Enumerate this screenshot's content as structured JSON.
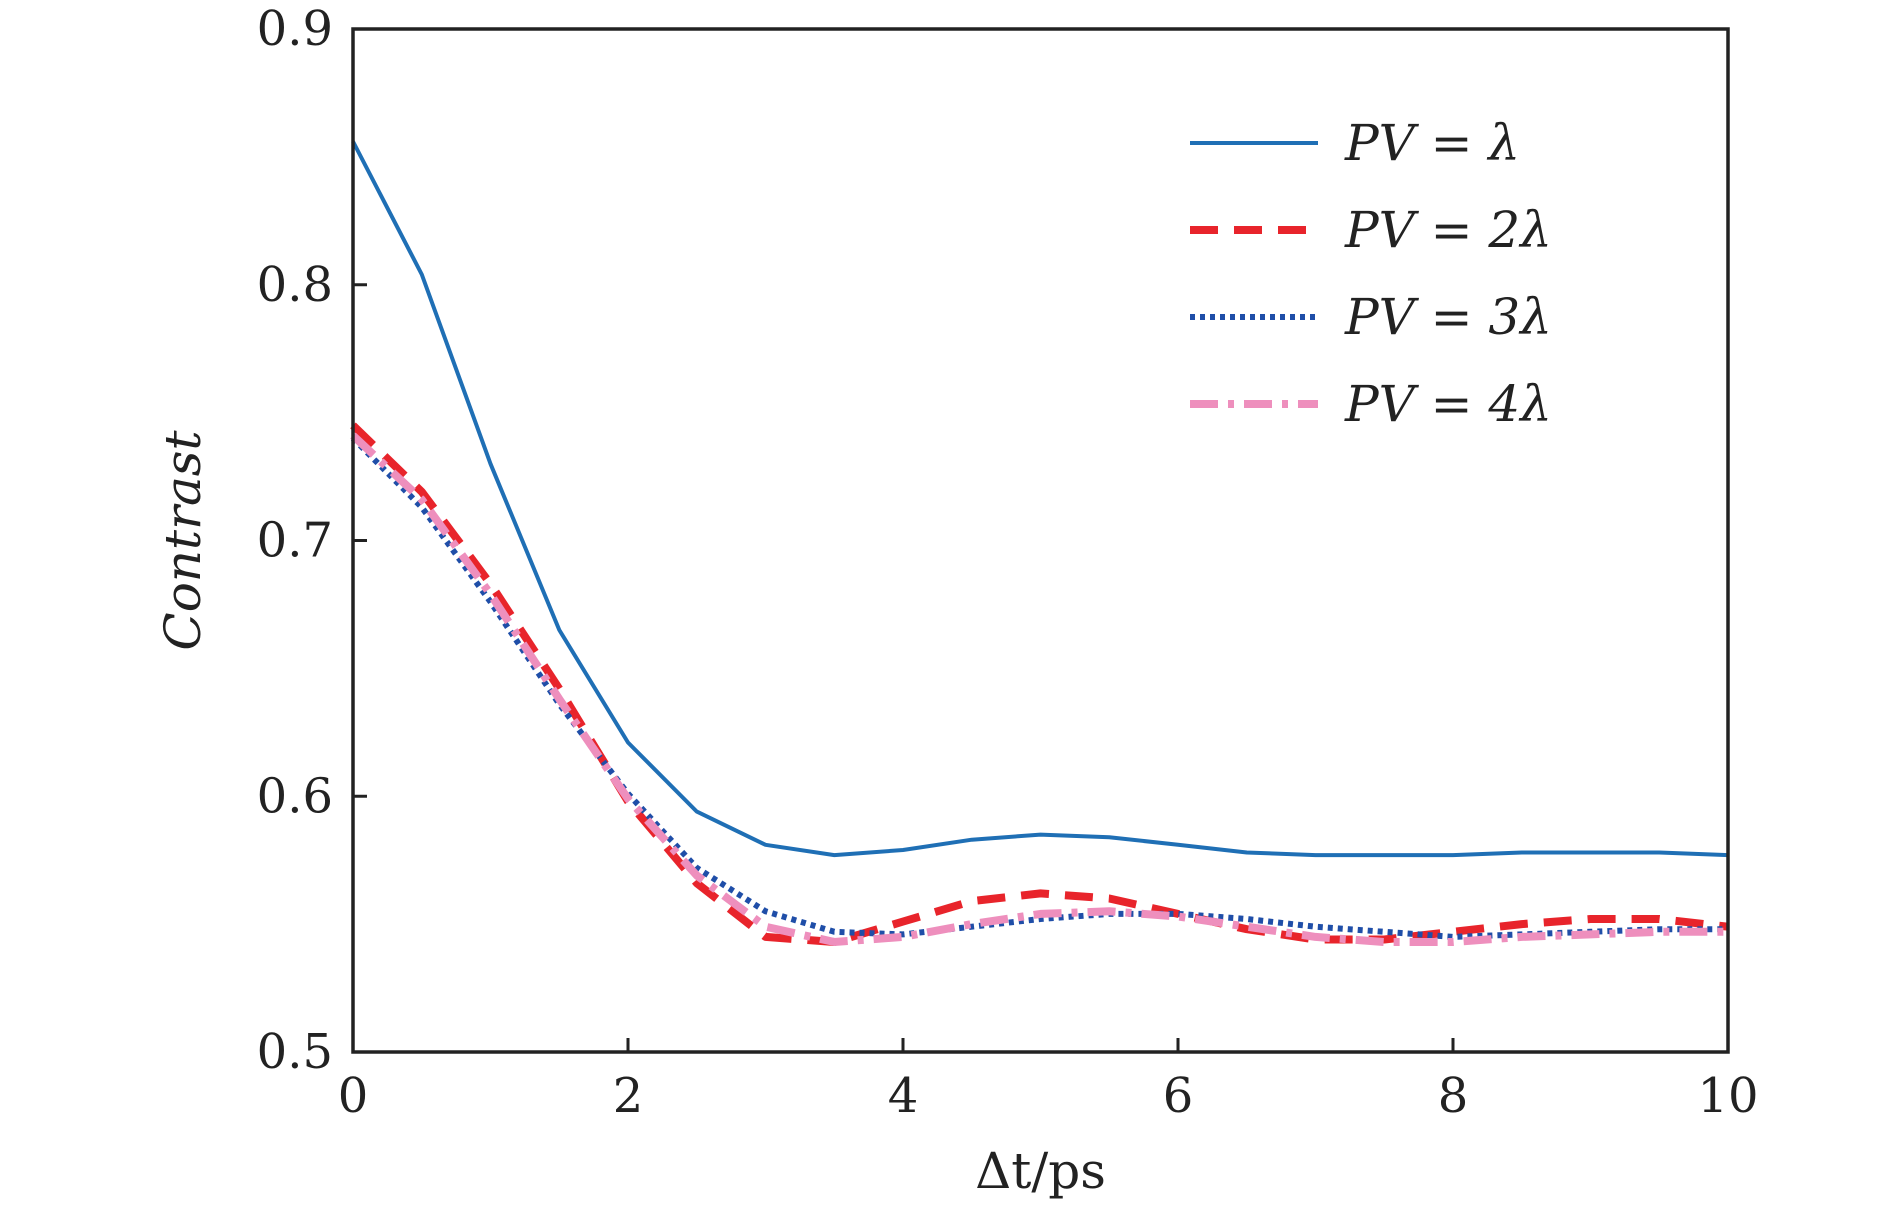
{
  "chart_data": {
    "type": "line",
    "title": "",
    "xlabel": "Δt/ps",
    "ylabel": "Contrast",
    "xlim": [
      0,
      10
    ],
    "ylim": [
      0.5,
      0.9
    ],
    "xticks": [
      0,
      2,
      4,
      6,
      8,
      10
    ],
    "yticks": [
      0.5,
      0.6,
      0.7,
      0.8,
      0.9
    ],
    "xtick_labels": [
      "0",
      "2",
      "4",
      "6",
      "8",
      "10"
    ],
    "ytick_labels": [
      "0.5",
      "0.6",
      "0.7",
      "0.8",
      "0.9"
    ],
    "grid": false,
    "legend_position": "top-right",
    "x": [
      0,
      0.5,
      1,
      1.5,
      2,
      2.5,
      3,
      3.5,
      4,
      4.5,
      5,
      5.5,
      6,
      6.5,
      7,
      7.5,
      8,
      8.5,
      9,
      9.5,
      10
    ],
    "series": [
      {
        "name": "PV = λ",
        "color": "#1f6fb5",
        "style": "solid",
        "values": [
          0.856,
          0.804,
          0.73,
          0.665,
          0.621,
          0.594,
          0.581,
          0.577,
          0.579,
          0.583,
          0.585,
          0.584,
          0.581,
          0.578,
          0.577,
          0.577,
          0.577,
          0.578,
          0.578,
          0.578,
          0.577
        ]
      },
      {
        "name": "PV = 2λ",
        "color": "#e8242b",
        "style": "dashed",
        "values": [
          0.745,
          0.719,
          0.683,
          0.642,
          0.598,
          0.566,
          0.545,
          0.543,
          0.551,
          0.559,
          0.562,
          0.56,
          0.554,
          0.548,
          0.544,
          0.544,
          0.547,
          0.55,
          0.552,
          0.552,
          0.549
        ]
      },
      {
        "name": "PV = 3λ",
        "color": "#1f4ea8",
        "style": "dotted",
        "values": [
          0.74,
          0.713,
          0.676,
          0.636,
          0.601,
          0.572,
          0.555,
          0.547,
          0.546,
          0.549,
          0.552,
          0.554,
          0.554,
          0.552,
          0.549,
          0.547,
          0.545,
          0.546,
          0.547,
          0.548,
          0.548
        ]
      },
      {
        "name": "PV = 4λ",
        "color": "#ee8fbd",
        "style": "dashdot",
        "values": [
          0.741,
          0.716,
          0.679,
          0.638,
          0.599,
          0.569,
          0.549,
          0.543,
          0.545,
          0.55,
          0.554,
          0.555,
          0.553,
          0.549,
          0.545,
          0.543,
          0.543,
          0.545,
          0.546,
          0.547,
          0.547
        ]
      }
    ]
  }
}
